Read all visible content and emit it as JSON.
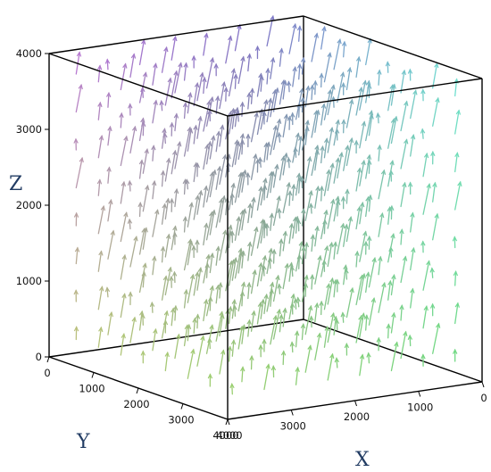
{
  "chart_data": {
    "type": "3d-vector-field",
    "title": "",
    "xlabel": "X",
    "ylabel": "Y",
    "zlabel": "Z",
    "xlim": [
      0,
      4000
    ],
    "ylim": [
      0,
      4000
    ],
    "zlim": [
      0,
      4000
    ],
    "x_ticks": [
      "0",
      "1000",
      "2000",
      "3000",
      "4000"
    ],
    "y_ticks": [
      "0",
      "1000",
      "2000",
      "3000",
      "4000"
    ],
    "z_ticks": [
      "0",
      "1000",
      "2000",
      "3000",
      "4000"
    ],
    "grid": false,
    "box": true,
    "arrow_color_scheme": "spectrum",
    "arrow_colors": [
      "#c070e0",
      "#8070c8",
      "#c0d860",
      "#70d870",
      "#70e0e0"
    ],
    "box_color": "#000000"
  }
}
